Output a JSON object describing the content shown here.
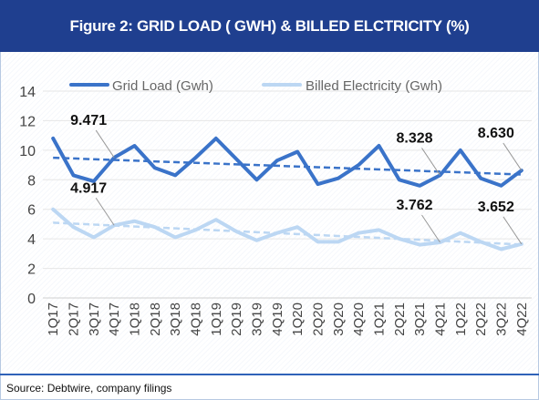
{
  "title": "Figure 2: GRID LOAD ( GWH) & BILLED ELCTRICITY (%)",
  "source": "Source: Debtwire, company filings",
  "colors": {
    "header": "#1f3f8f",
    "grid_load": "#3a73c9",
    "billed": "#bcd7f3"
  },
  "chart_data": {
    "type": "line",
    "categories": [
      "1Q17",
      "2Q17",
      "3Q17",
      "4Q17",
      "1Q18",
      "2Q18",
      "3Q18",
      "4Q18",
      "1Q19",
      "2Q19",
      "3Q19",
      "4Q19",
      "1Q20",
      "2Q20",
      "3Q20",
      "4Q20",
      "1Q21",
      "2Q21",
      "3Q21",
      "4Q21",
      "1Q22",
      "2Q22",
      "3Q22",
      "4Q22"
    ],
    "ylim": [
      0,
      14
    ],
    "yticks": [
      0,
      2,
      4,
      6,
      8,
      10,
      12,
      14
    ],
    "legend_position": "top",
    "trendlines": true,
    "series": [
      {
        "name": "Grid Load (Gwh)",
        "color": "#3a73c9",
        "values": [
          10.8,
          8.3,
          7.9,
          9.5,
          10.3,
          8.8,
          8.3,
          9.5,
          10.8,
          9.4,
          8.0,
          9.3,
          9.9,
          7.7,
          8.1,
          9.0,
          10.3,
          8.0,
          7.6,
          8.3,
          10.0,
          8.1,
          7.6,
          8.63
        ]
      },
      {
        "name": "Billed Electricity (Gwh)",
        "color": "#bcd7f3",
        "values": [
          6.0,
          4.8,
          4.1,
          4.917,
          5.2,
          4.8,
          4.1,
          4.6,
          5.3,
          4.5,
          3.9,
          4.4,
          4.8,
          3.8,
          3.8,
          4.4,
          4.6,
          4.0,
          3.6,
          3.762,
          4.4,
          3.8,
          3.3,
          3.652
        ]
      }
    ],
    "annotations": [
      {
        "text": "9.471",
        "series": 0,
        "index": 3
      },
      {
        "text": "8.328",
        "series": 0,
        "index": 19
      },
      {
        "text": "8.630",
        "series": 0,
        "index": 23
      },
      {
        "text": "4.917",
        "series": 1,
        "index": 3
      },
      {
        "text": "3.762",
        "series": 1,
        "index": 19
      },
      {
        "text": "3.652",
        "series": 1,
        "index": 23
      }
    ]
  }
}
